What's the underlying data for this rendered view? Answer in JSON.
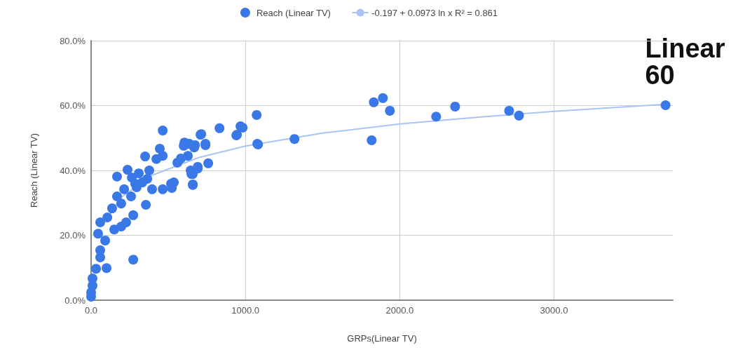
{
  "chart_data": {
    "type": "scatter",
    "xlabel": "GRPs(Linear TV)",
    "ylabel": "Reach (Linear TV)",
    "annotations": [
      "Linear 60"
    ],
    "xlim": [
      0,
      3770
    ],
    "xticks": [
      {
        "value": 0,
        "label": "0.0"
      },
      {
        "value": 1000,
        "label": "1000.0"
      },
      {
        "value": 2000,
        "label": "2000.0"
      },
      {
        "value": 3000,
        "label": "3000.0"
      }
    ],
    "ylim": [
      0,
      80
    ],
    "yticks": [
      {
        "value": 0,
        "label": "0.0%"
      },
      {
        "value": 20,
        "label": "20.0%"
      },
      {
        "value": 40,
        "label": "40.0%"
      },
      {
        "value": 60,
        "label": "60.0%"
      },
      {
        "value": 80,
        "label": "80.0%"
      }
    ],
    "grid": true,
    "legend": "top",
    "marker": "circle",
    "series": [
      {
        "name": "Reach (Linear TV)",
        "color": "#3b78e7",
        "x": [
          3723,
          2773,
          2709,
          2359,
          2236,
          1936,
          1891,
          1832,
          1818,
          1318,
          1082,
          1073,
          982,
          945,
          832,
          759,
          741,
          709,
          691,
          668,
          659,
          659,
          645,
          636,
          600,
          582,
          518,
          523,
          464,
          464,
          714,
          968,
          941,
          1077,
          605,
          673,
          741,
          627,
          559,
          691,
          650,
          659,
          536,
          464,
          445,
          350,
          423,
          236,
          168,
          309,
          364,
          395,
          295,
          259,
          168,
          195,
          355,
          136,
          273,
          227,
          105,
          150,
          59,
          195,
          45,
          91,
          59,
          59,
          273,
          32,
          100,
          9,
          9,
          0,
          0,
          286,
          214,
          377,
          332,
          264
        ],
        "values": [
          60.1,
          56.9,
          58.4,
          59.7,
          56.6,
          58.4,
          62.3,
          61.0,
          49.3,
          49.7,
          48.0,
          57.1,
          53.2,
          51.0,
          53.0,
          42.2,
          47.8,
          51.0,
          41.1,
          47.1,
          38.9,
          35.7,
          40.0,
          48.2,
          47.6,
          43.7,
          35.9,
          34.6,
          44.5,
          52.3,
          51.2,
          53.6,
          50.8,
          48.2,
          48.6,
          47.8,
          48.2,
          44.5,
          42.4,
          40.6,
          38.9,
          35.5,
          36.3,
          34.2,
          46.7,
          44.3,
          43.5,
          40.2,
          38.1,
          39.1,
          37.4,
          34.2,
          34.8,
          32.0,
          32.0,
          29.8,
          29.4,
          28.3,
          26.2,
          24.0,
          25.5,
          21.8,
          24.0,
          22.7,
          20.5,
          18.4,
          15.4,
          13.2,
          12.5,
          9.7,
          9.9,
          6.7,
          4.5,
          2.4,
          1.1,
          35.9,
          34.2,
          40.0,
          36.3,
          37.8
        ]
      },
      {
        "name": "-0.197 + 0.0973 ln x R² = 0.861",
        "type": "line",
        "marker": "none",
        "color": "#a9c4f5",
        "x": [
          100,
          200,
          400,
          700,
          1000,
          1500,
          2000,
          2500,
          3000,
          3700
        ],
        "values": [
          25.1,
          31.9,
          38.6,
          44.0,
          47.5,
          51.5,
          54.3,
          56.4,
          58.2,
          60.3
        ]
      }
    ]
  }
}
